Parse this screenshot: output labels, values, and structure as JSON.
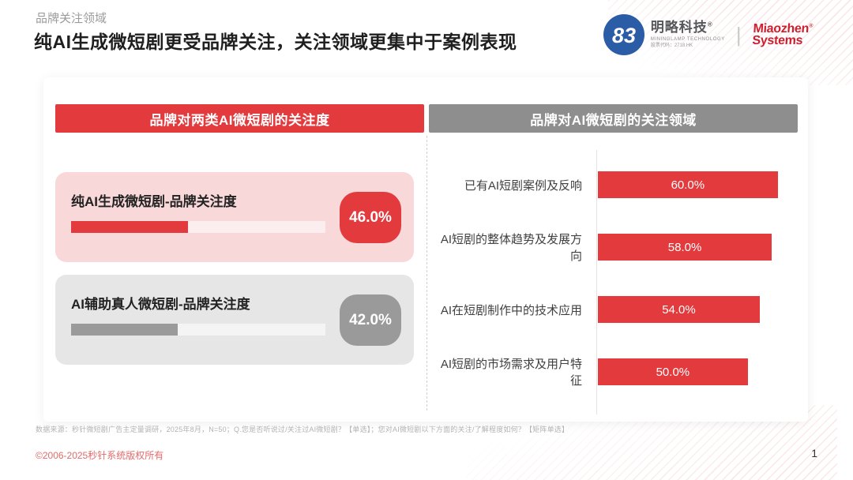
{
  "page": {
    "eyebrow": "品牌关注领域",
    "title": "纯AI生成微短剧更受品牌关注，关注领域更集中于案例表现",
    "footnote": "数据来源：秒针微短剧广告主定量调研，2025年8月，N=50；Q.您是否听说过/关注过AI微短剧？【单选】；您对AI微短剧以下方面的关注/了解程度如何？【矩阵单选】",
    "copyright": "©2006-2025秒针系统版权所有",
    "page_number": "1"
  },
  "logos": {
    "mininglamp": {
      "mark": "83",
      "name": "明略科技",
      "registered": "®",
      "subtitle": "MININGLAMP TECHNOLOGY",
      "stock": "股票代码：2718.HK"
    },
    "divider": "|",
    "miaozhen": {
      "line1": "Miaozhen",
      "registered": "®",
      "line2": "Systems"
    }
  },
  "colors": {
    "accent_red": "#e23a3d",
    "header_gray": "#8e8e8e",
    "card_pink": "#f9d8da",
    "card_gray": "#e6e6e6",
    "badge_gray": "#9a9a9a"
  },
  "left_panel": {
    "header": "品牌对两类AI微短剧的关注度",
    "cards": [
      {
        "label": "纯AI生成微短剧-品牌关注度",
        "value": 46.0,
        "value_label": "46.0%",
        "theme": "red"
      },
      {
        "label": "AI辅助真人微短剧-品牌关注度",
        "value": 42.0,
        "value_label": "42.0%",
        "theme": "gray"
      }
    ]
  },
  "right_panel": {
    "header": "品牌对AI微短剧的关注领域",
    "bars": [
      {
        "label": "已有AI短剧案例及反响",
        "value": 60.0,
        "value_label": "60.0%"
      },
      {
        "label": "AI短剧的整体趋势及发展方向",
        "value": 58.0,
        "value_label": "58.0%"
      },
      {
        "label": "AI在短剧制作中的技术应用",
        "value": 54.0,
        "value_label": "54.0%"
      },
      {
        "label": "AI短剧的市场需求及用户特征",
        "value": 50.0,
        "value_label": "50.0%"
      }
    ]
  },
  "chart_data": [
    {
      "type": "bar",
      "orientation": "horizontal",
      "title": "品牌对两类AI微短剧的关注度",
      "categories": [
        "纯AI生成微短剧-品牌关注度",
        "AI辅助真人微短剧-品牌关注度"
      ],
      "values": [
        46.0,
        42.0
      ],
      "unit": "%",
      "xlim": [
        0,
        100
      ],
      "grid": false,
      "legend": "none",
      "bar_colors": [
        "#e23a3d",
        "#9a9a9a"
      ]
    },
    {
      "type": "bar",
      "orientation": "horizontal",
      "title": "品牌对AI微短剧的关注领域",
      "categories": [
        "已有AI短剧案例及反响",
        "AI短剧的整体趋势及发展方向",
        "AI在短剧制作中的技术应用",
        "AI短剧的市场需求及用户特征"
      ],
      "values": [
        60.0,
        58.0,
        54.0,
        50.0
      ],
      "unit": "%",
      "grid": false,
      "legend": "none",
      "bar_colors": [
        "#e23a3d",
        "#e23a3d",
        "#e23a3d",
        "#e23a3d"
      ]
    }
  ]
}
